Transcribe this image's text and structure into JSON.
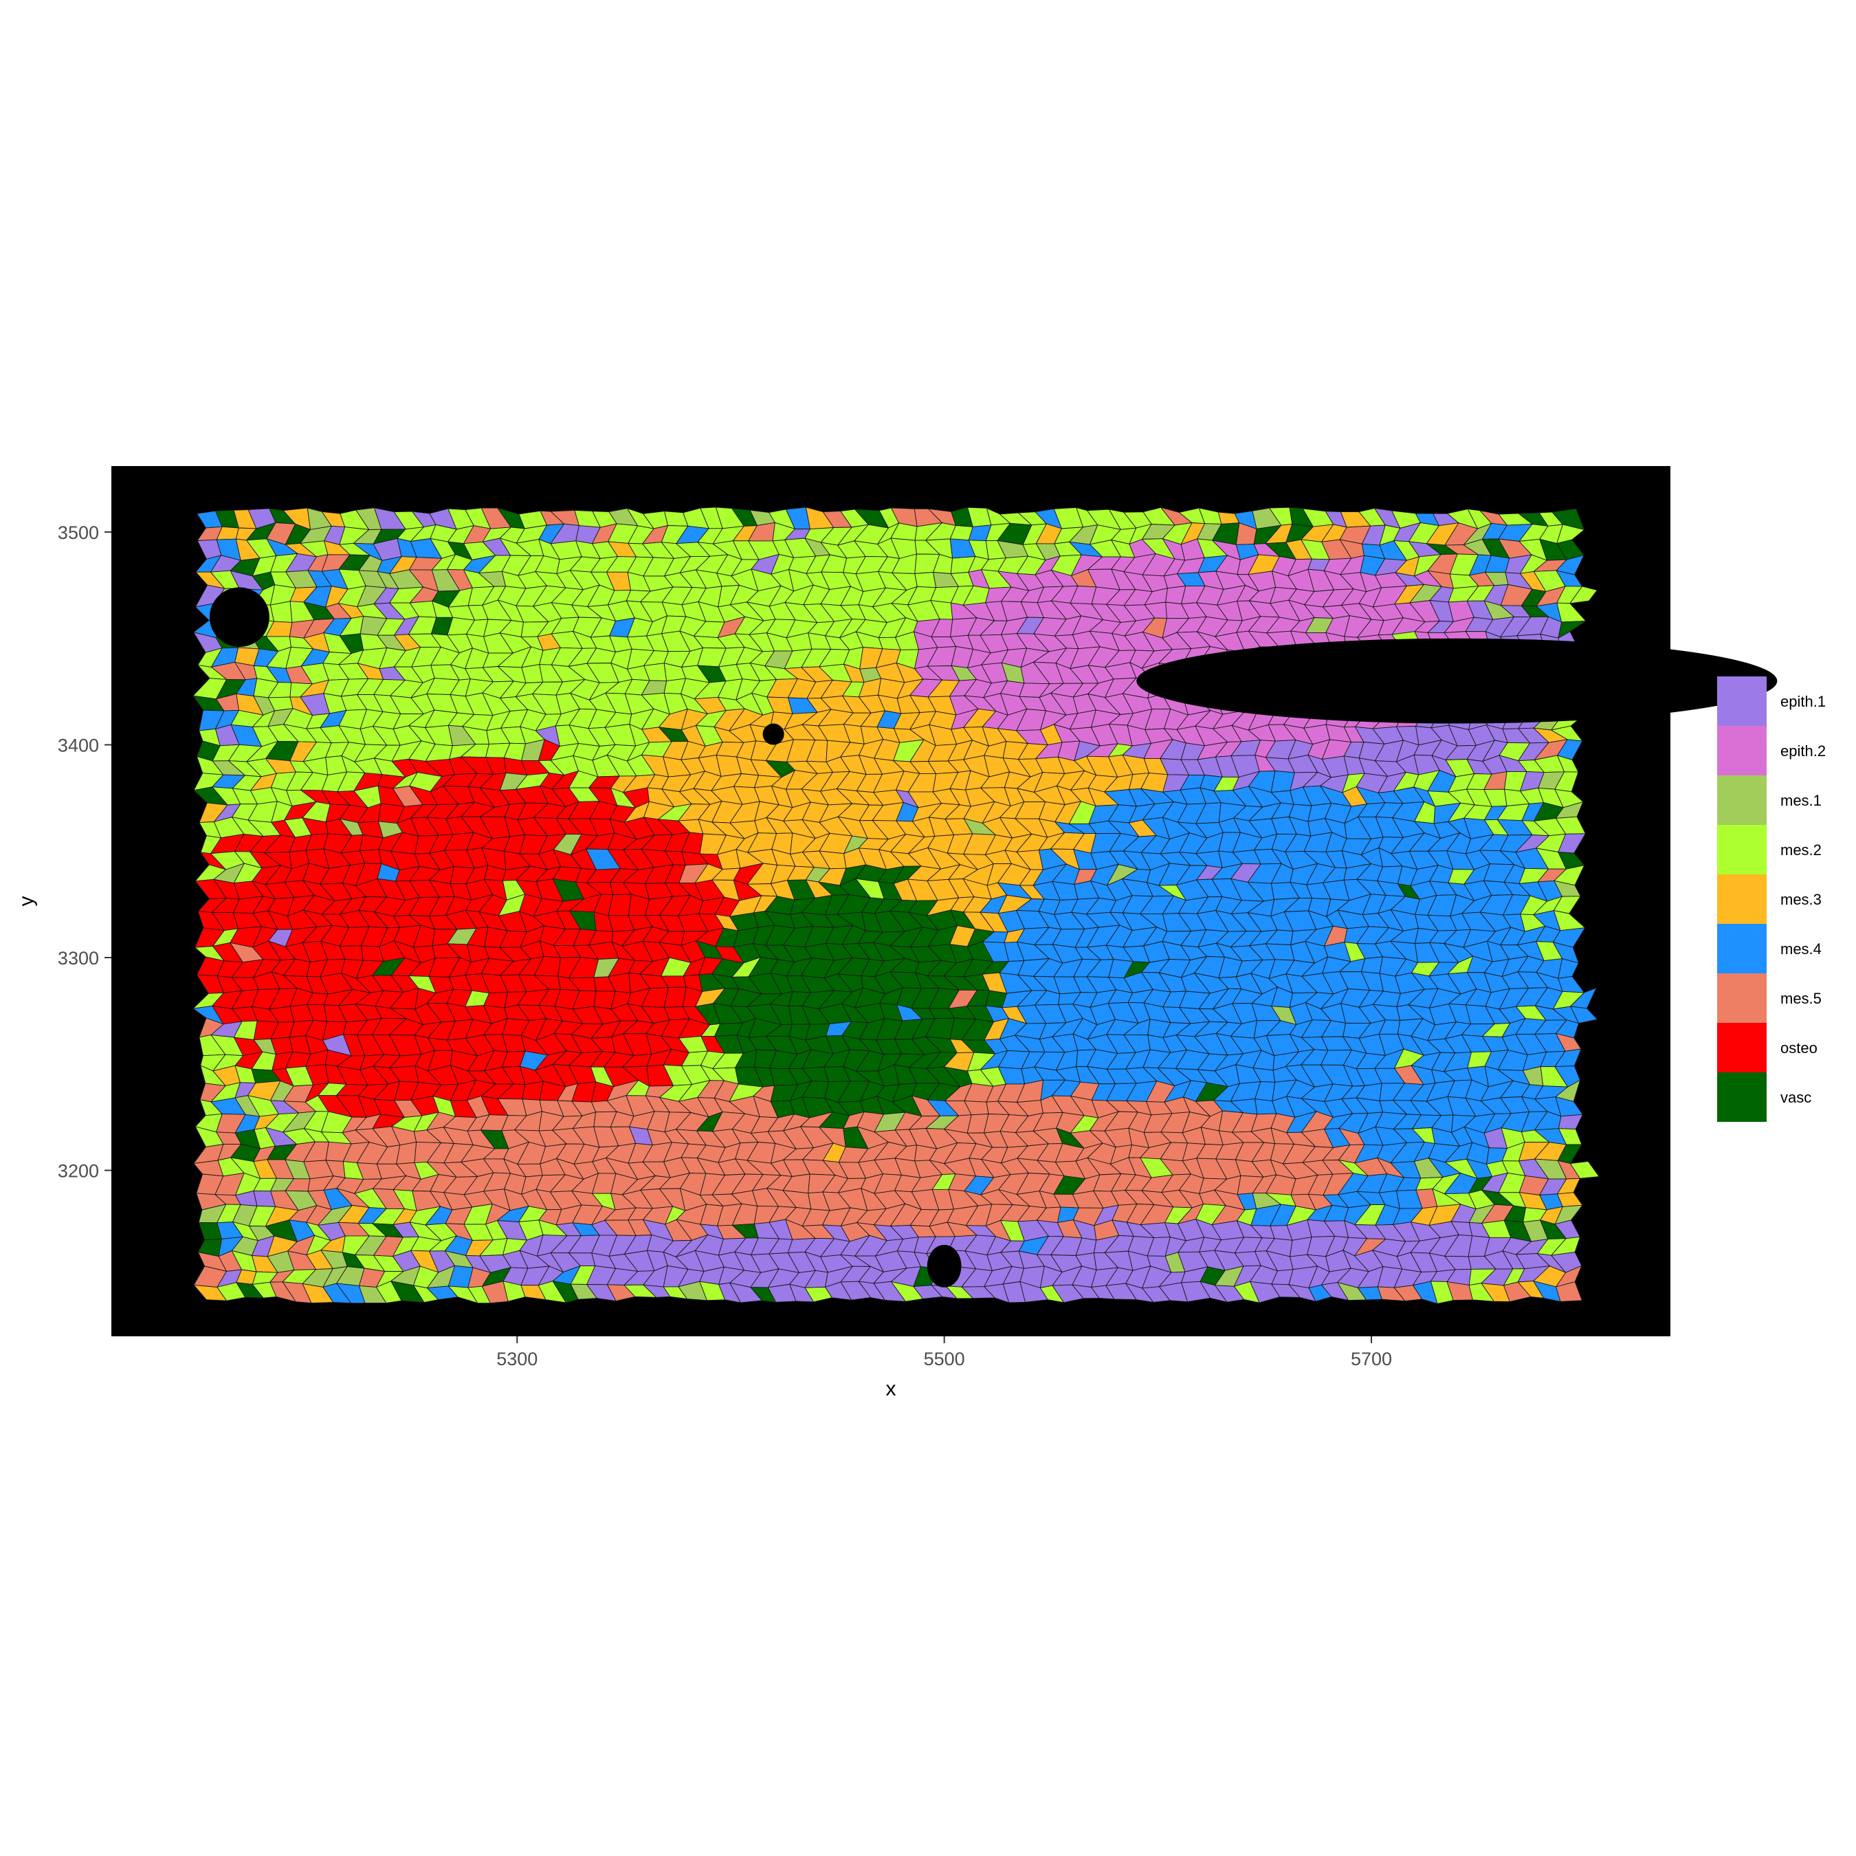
{
  "chart_data": {
    "type": "spatial-cell-map",
    "title": "",
    "xlabel": "x",
    "ylabel": "y",
    "xlim": [
      5110,
      5840
    ],
    "ylim": [
      3122,
      3531
    ],
    "x_ticks": [
      5300,
      5500,
      5700
    ],
    "y_ticks": [
      3200,
      3300,
      3400,
      3500
    ],
    "panel_background": "#000000",
    "grid": false,
    "legend_position": "right",
    "tissue_extent": {
      "x": [
        5150,
        5800
      ],
      "y": [
        3140,
        3510
      ]
    },
    "categories": [
      {
        "name": "epith.1",
        "color": "#9C7AE8"
      },
      {
        "name": "epith.2",
        "color": "#DA70D6"
      },
      {
        "name": "mes.1",
        "color": "#A2CD5A"
      },
      {
        "name": "mes.2",
        "color": "#ADFF2F"
      },
      {
        "name": "mes.3",
        "color": "#FFB921"
      },
      {
        "name": "mes.4",
        "color": "#1E90FF"
      },
      {
        "name": "mes.5",
        "color": "#EE7F64"
      },
      {
        "name": "osteo",
        "color": "#FF0000"
      },
      {
        "name": "vasc",
        "color": "#006400"
      }
    ],
    "regions": [
      {
        "category": "mes.2",
        "x": [
          5150,
          5800
        ],
        "y": [
          3140,
          3510
        ]
      },
      {
        "category": "mes.3",
        "x": [
          5340,
          5640
        ],
        "y": [
          3250,
          3440
        ]
      },
      {
        "category": "mes.4",
        "x": [
          5520,
          5800
        ],
        "y": [
          3180,
          3390
        ]
      },
      {
        "category": "osteo",
        "x": [
          5150,
          5410
        ],
        "y": [
          3220,
          3390
        ]
      },
      {
        "category": "epith.1",
        "x": [
          5270,
          5800
        ],
        "y": [
          3140,
          3180
        ]
      },
      {
        "category": "epith.1",
        "x": [
          5550,
          5800
        ],
        "y": [
          3380,
          3480
        ]
      },
      {
        "category": "epith.2",
        "x": [
          5490,
          5750
        ],
        "y": [
          3395,
          3490
        ]
      },
      {
        "category": "mes.5",
        "x": [
          5200,
          5700
        ],
        "y": [
          3170,
          3240
        ]
      },
      {
        "category": "vasc",
        "x": [
          5390,
          5520
        ],
        "y": [
          3220,
          3340
        ]
      }
    ]
  }
}
